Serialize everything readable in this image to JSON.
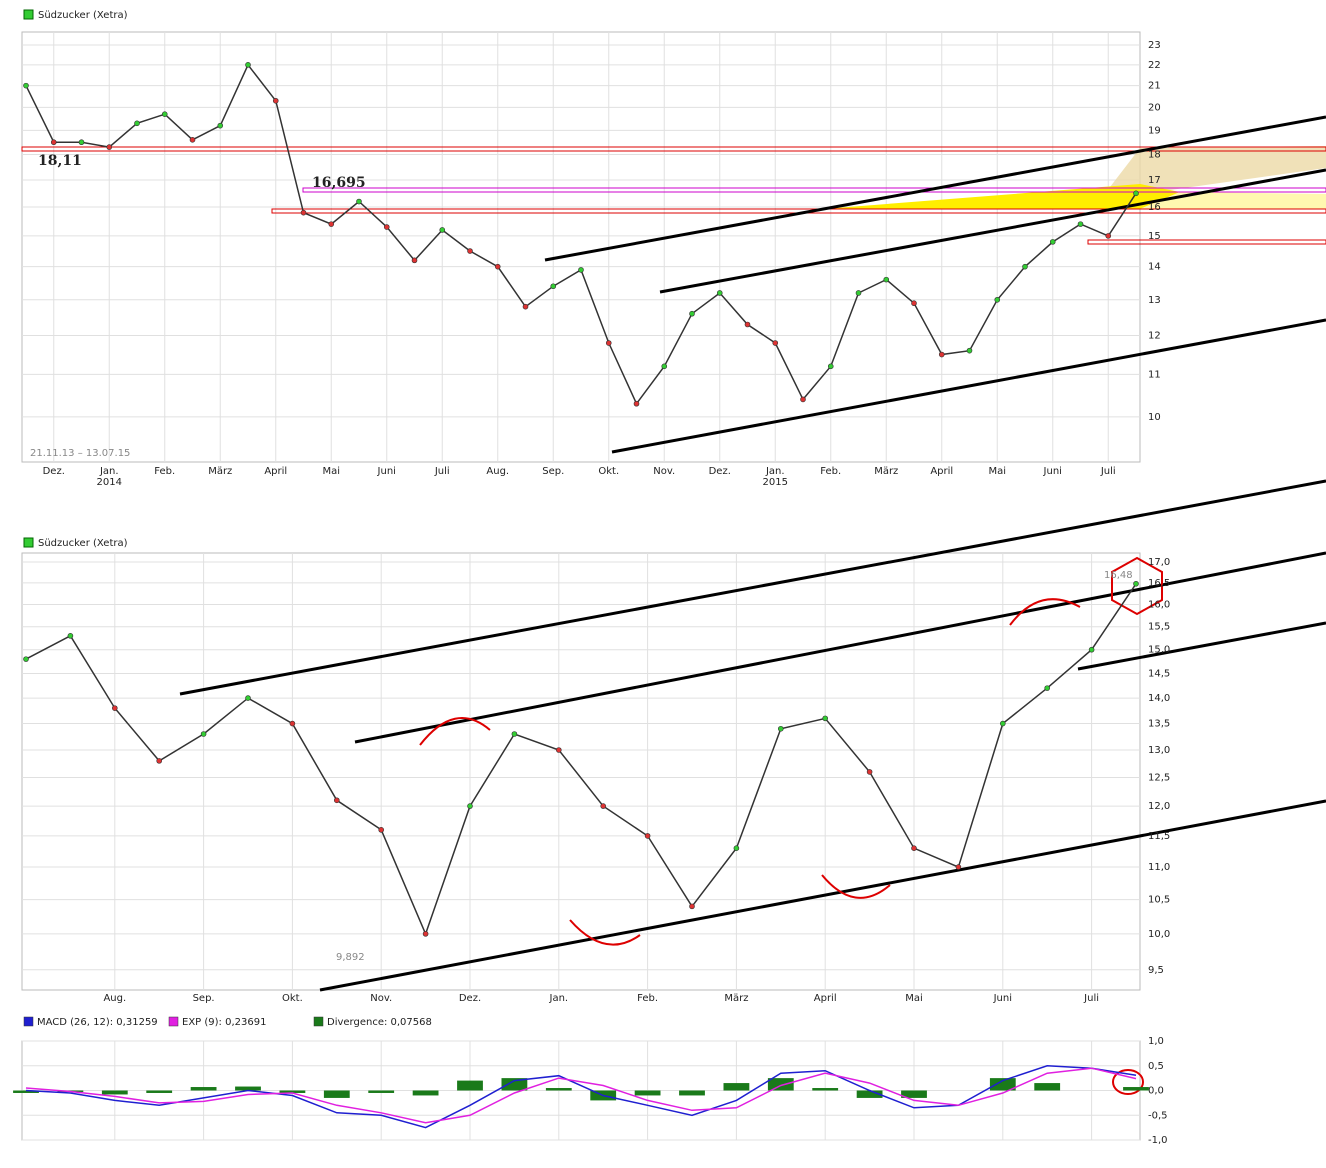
{
  "chart_data": [
    {
      "type": "line",
      "title": "Südzucker (Xetra)",
      "log_scale": true,
      "grid": true,
      "color": "#333333",
      "categories": [
        null,
        "Dez.",
        null,
        "Jan.\n2014",
        null,
        "Feb.",
        null,
        "März",
        null,
        "April",
        null,
        "Mai",
        null,
        "Juni",
        null,
        "Juli",
        null,
        "Aug.",
        null,
        "Sep.",
        null,
        "Okt.",
        null,
        "Nov.",
        null,
        "Dez.",
        null,
        "Jan.\n2015",
        null,
        "Feb.",
        null,
        "März",
        null,
        "April",
        null,
        "Mai",
        null,
        "Juni",
        null,
        "Juli",
        null
      ],
      "values": [
        21.0,
        18.5,
        18.5,
        18.3,
        19.3,
        19.7,
        18.6,
        19.2,
        22.0,
        20.3,
        15.8,
        15.4,
        16.2,
        15.3,
        14.2,
        15.2,
        14.5,
        14.0,
        12.8,
        13.4,
        13.9,
        11.8,
        10.3,
        11.2,
        12.6,
        13.2,
        12.3,
        11.8,
        10.4,
        11.2,
        13.2,
        13.6,
        12.9,
        11.5,
        11.6,
        13.0,
        14.0,
        14.8,
        15.4,
        15.0,
        16.5
      ],
      "ylim": [
        9.04,
        23.68
      ],
      "yticks": [
        10,
        11,
        12,
        13,
        14,
        15,
        16,
        17,
        18,
        19,
        20,
        21,
        22,
        23
      ],
      "annotations": [
        "18,11",
        "16,695",
        "21.11.13 – 13.07.15"
      ]
    },
    {
      "type": "line",
      "title": "Südzucker (Xetra)",
      "log_scale": true,
      "grid": true,
      "color": "#333333",
      "categories": [
        null,
        null,
        "Aug.",
        null,
        "Sep.",
        null,
        "Okt.",
        null,
        "Nov.",
        null,
        "Dez.",
        null,
        "Jan.",
        null,
        "Feb.",
        null,
        "März",
        null,
        "April",
        null,
        "Mai",
        null,
        "Juni",
        null,
        "Juli",
        null
      ],
      "values": [
        14.8,
        15.3,
        13.8,
        12.8,
        13.3,
        14.0,
        13.5,
        12.1,
        11.6,
        10.0,
        12.0,
        13.3,
        13.0,
        12.0,
        11.5,
        10.4,
        11.3,
        13.4,
        13.6,
        12.6,
        11.3,
        11.0,
        13.5,
        14.2,
        15.0,
        16.48
      ],
      "ylim": [
        9.23,
        17.22
      ],
      "yticks": [
        {
          "value": 9.5,
          "label": "9,5"
        },
        {
          "value": 10,
          "label": "10,0"
        },
        {
          "value": 10.5,
          "label": "10,5"
        },
        {
          "value": 11,
          "label": "11,0"
        },
        {
          "value": 11.5,
          "label": "11,5"
        },
        {
          "value": 12,
          "label": "12,0"
        },
        {
          "value": 12.5,
          "label": "12,5"
        },
        {
          "value": 13,
          "label": "13,0"
        },
        {
          "value": 13.5,
          "label": "13,5"
        },
        {
          "value": 14,
          "label": "14,0"
        },
        {
          "value": 14.5,
          "label": "14,5"
        },
        {
          "value": 15,
          "label": "15,0"
        },
        {
          "value": 15.5,
          "label": "15,5"
        },
        {
          "value": 16,
          "label": "16,0"
        },
        {
          "value": 16.5,
          "label": "16,5"
        },
        {
          "value": 17,
          "label": "17,0"
        }
      ],
      "annotations": [
        "9,892",
        "16,48"
      ]
    },
    {
      "type": "macd",
      "grid": true,
      "series": [
        {
          "name": "MACD (26, 12): 0,31259",
          "color": "#1f1fd0",
          "values": [
            0.0,
            -0.05,
            -0.2,
            -0.3,
            -0.15,
            0.0,
            -0.1,
            -0.45,
            -0.5,
            -0.75,
            -0.3,
            0.2,
            0.3,
            -0.1,
            -0.3,
            -0.5,
            -0.2,
            0.35,
            0.4,
            0.0,
            -0.35,
            -0.3,
            0.2,
            0.5,
            0.45,
            0.31
          ]
        },
        {
          "name": "EXP (9): 0,23691",
          "color": "#e020e0",
          "values": [
            0.05,
            -0.02,
            -0.12,
            -0.25,
            -0.22,
            -0.08,
            -0.05,
            -0.3,
            -0.45,
            -0.65,
            -0.5,
            -0.05,
            0.25,
            0.1,
            -0.2,
            -0.4,
            -0.35,
            0.1,
            0.35,
            0.15,
            -0.2,
            -0.3,
            -0.05,
            0.35,
            0.45,
            0.24
          ]
        },
        {
          "name": "Divergence: 0,07568",
          "color": "#1a7a1a",
          "values": [
            -0.05,
            -0.03,
            -0.08,
            -0.05,
            0.07,
            0.08,
            -0.05,
            -0.15,
            -0.05,
            -0.1,
            0.2,
            0.25,
            0.05,
            -0.2,
            -0.1,
            -0.1,
            0.15,
            0.25,
            0.05,
            -0.15,
            -0.15,
            0,
            0.25,
            0.15,
            0,
            0.07
          ]
        }
      ],
      "ylim": [
        -1,
        1
      ],
      "yticks": [
        {
          "value": -1,
          "label": "-1,0"
        },
        {
          "value": -0.5,
          "label": "-0,5"
        },
        {
          "value": 0,
          "label": "0,0"
        },
        {
          "value": 0.5,
          "label": "0,5"
        },
        {
          "value": 1,
          "label": "1,0"
        }
      ]
    }
  ]
}
